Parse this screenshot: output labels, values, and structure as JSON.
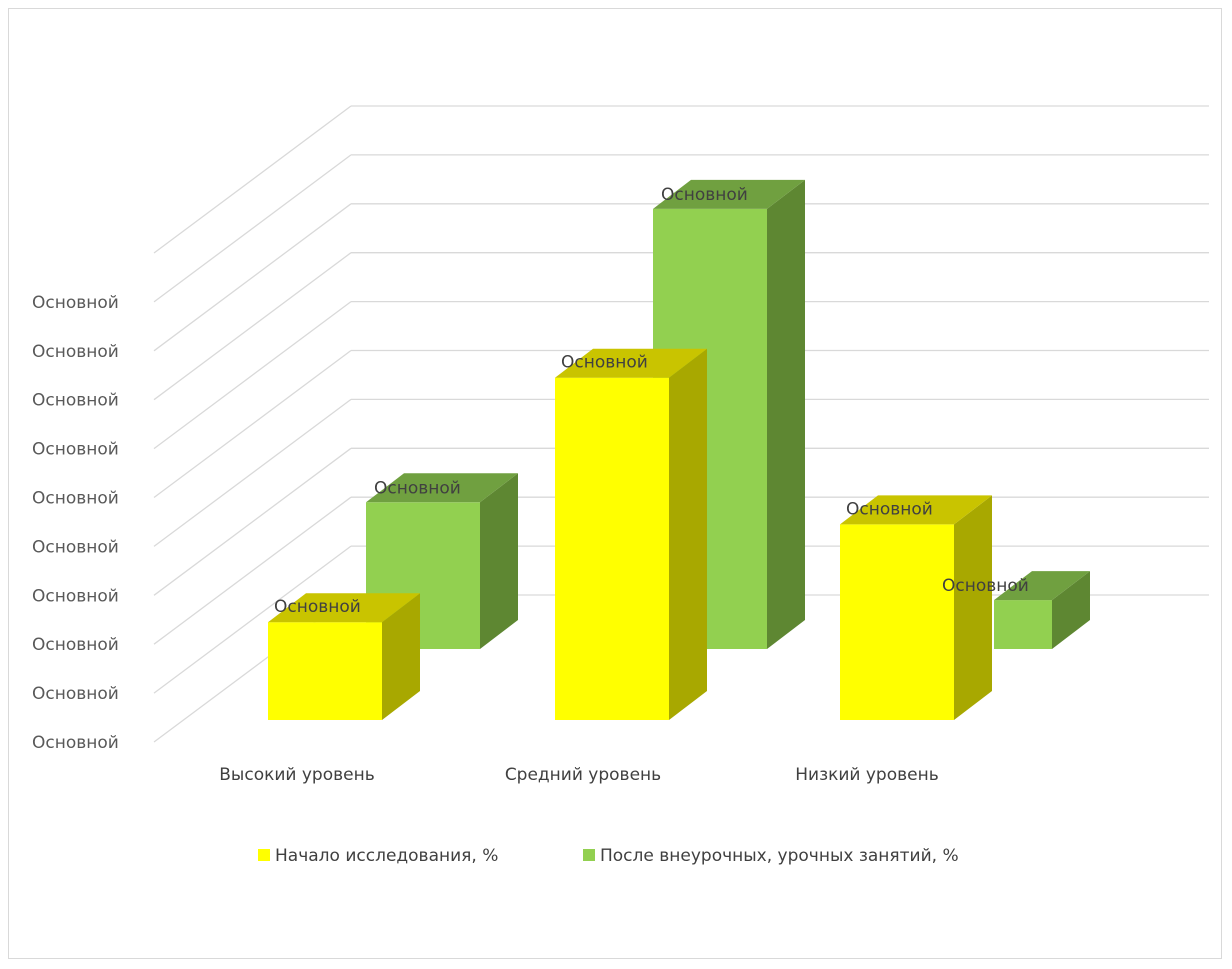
{
  "chart_data": {
    "type": "bar",
    "subtype": "3d-clustered-column",
    "title": "",
    "categories": [
      "Высокий уровень",
      "Средний уровень",
      "Низкий уровень"
    ],
    "series": [
      {
        "name": "Начало исследования, %",
        "values": [
          20,
          70,
          40
        ],
        "color": "#ffff00",
        "color_side": "#a8a800",
        "color_top": "#c9c400"
      },
      {
        "name": "После внеурочных, урочных занятий, %",
        "values": [
          30,
          90,
          10
        ],
        "color": "#92d050",
        "color_side": "#5e8732",
        "color_top": "#70a040"
      }
    ],
    "ylim": [
      0,
      90
    ],
    "y_tick_count": 10,
    "y_tick_label": "Основной",
    "data_label": "Основной",
    "grid": true,
    "legend": "bottom"
  }
}
